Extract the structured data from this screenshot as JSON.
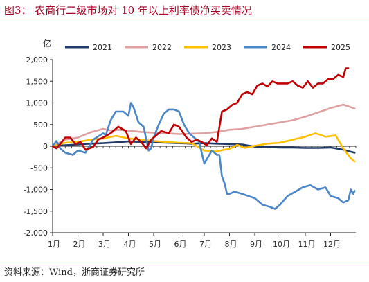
{
  "figure": {
    "title": "图3：  农商行二级市场对 10 年以上利率债净买卖情况",
    "source": "资料来源：Wind，浙商证券研究所"
  },
  "colors": {
    "accent": "#a50021",
    "axis": "#222222"
  },
  "chart_data": {
    "type": "line",
    "ylabel": "亿",
    "ylim": [
      -2000,
      2000
    ],
    "yticks": [
      2000,
      1500,
      1000,
      500,
      0,
      -500,
      -1000,
      -1500,
      -2000
    ],
    "ytick_labels": [
      "2,000",
      "1,500",
      "1,000",
      "500",
      "0",
      "-500",
      "-1,000",
      "-1,500",
      "-2,000"
    ],
    "xlim": [
      1,
      13
    ],
    "xticks": [
      1,
      2,
      3,
      4,
      5,
      6,
      7,
      8,
      9,
      10,
      11,
      12
    ],
    "xtick_labels": [
      "1月",
      "2月",
      "3月",
      "4月",
      "5月",
      "6月",
      "7月",
      "8月",
      "9月",
      "10月",
      "11月",
      "12月"
    ],
    "legend": "top",
    "series": [
      {
        "name": "2021",
        "color": "#1f3a68",
        "points": [
          [
            1.0,
            0
          ],
          [
            1.4,
            20
          ],
          [
            2.0,
            40
          ],
          [
            2.5,
            60
          ],
          [
            3.0,
            70
          ],
          [
            3.5,
            90
          ],
          [
            4.0,
            110
          ],
          [
            4.5,
            100
          ],
          [
            5.0,
            90
          ],
          [
            5.5,
            80
          ],
          [
            6.0,
            70
          ],
          [
            6.5,
            60
          ],
          [
            7.0,
            70
          ],
          [
            7.5,
            60
          ],
          [
            8.0,
            50
          ],
          [
            8.5,
            40
          ],
          [
            9.0,
            -10
          ],
          [
            9.5,
            -20
          ],
          [
            10.0,
            -30
          ],
          [
            10.5,
            -30
          ],
          [
            11.0,
            -40
          ],
          [
            11.5,
            -40
          ],
          [
            12.0,
            -30
          ],
          [
            12.5,
            -80
          ],
          [
            12.95,
            -150
          ]
        ]
      },
      {
        "name": "2022",
        "color": "#e0a0a0",
        "points": [
          [
            1.0,
            0
          ],
          [
            1.5,
            150
          ],
          [
            2.0,
            200
          ],
          [
            2.5,
            320
          ],
          [
            3.0,
            400
          ],
          [
            3.3,
            360
          ],
          [
            3.6,
            380
          ],
          [
            4.0,
            360
          ],
          [
            4.5,
            330
          ],
          [
            5.0,
            310
          ],
          [
            5.5,
            300
          ],
          [
            6.0,
            280
          ],
          [
            6.5,
            290
          ],
          [
            7.0,
            300
          ],
          [
            7.5,
            330
          ],
          [
            8.0,
            380
          ],
          [
            8.5,
            400
          ],
          [
            9.0,
            450
          ],
          [
            9.5,
            500
          ],
          [
            10.0,
            550
          ],
          [
            10.5,
            600
          ],
          [
            11.0,
            680
          ],
          [
            11.5,
            780
          ],
          [
            12.0,
            880
          ],
          [
            12.5,
            960
          ],
          [
            12.95,
            870
          ]
        ]
      },
      {
        "name": "2023",
        "color": "#ffc000",
        "points": [
          [
            1.0,
            0
          ],
          [
            1.5,
            80
          ],
          [
            2.0,
            100
          ],
          [
            2.5,
            150
          ],
          [
            3.0,
            180
          ],
          [
            3.5,
            240
          ],
          [
            4.0,
            180
          ],
          [
            4.5,
            150
          ],
          [
            5.0,
            120
          ],
          [
            5.5,
            100
          ],
          [
            6.0,
            80
          ],
          [
            6.5,
            70
          ],
          [
            7.0,
            -100
          ],
          [
            7.5,
            -120
          ],
          [
            7.8,
            -80
          ],
          [
            8.0,
            -60
          ],
          [
            8.3,
            30
          ],
          [
            8.6,
            -40
          ],
          [
            9.0,
            10
          ],
          [
            9.5,
            60
          ],
          [
            10.0,
            80
          ],
          [
            10.5,
            150
          ],
          [
            11.0,
            220
          ],
          [
            11.4,
            300
          ],
          [
            11.8,
            220
          ],
          [
            12.2,
            250
          ],
          [
            12.5,
            -50
          ],
          [
            12.8,
            -280
          ],
          [
            12.95,
            -350
          ]
        ]
      },
      {
        "name": "2024",
        "color": "#4a86c8",
        "points": [
          [
            1.0,
            0
          ],
          [
            1.15,
            120
          ],
          [
            1.3,
            -50
          ],
          [
            1.5,
            -150
          ],
          [
            1.8,
            -200
          ],
          [
            2.0,
            -100
          ],
          [
            2.3,
            -150
          ],
          [
            2.6,
            150
          ],
          [
            3.0,
            300
          ],
          [
            3.1,
            250
          ],
          [
            3.3,
            600
          ],
          [
            3.5,
            800
          ],
          [
            3.8,
            800
          ],
          [
            4.0,
            700
          ],
          [
            4.1,
            1000
          ],
          [
            4.2,
            900
          ],
          [
            4.4,
            550
          ],
          [
            4.6,
            450
          ],
          [
            4.8,
            -100
          ],
          [
            4.9,
            -50
          ],
          [
            5.0,
            200
          ],
          [
            5.2,
            500
          ],
          [
            5.4,
            750
          ],
          [
            5.6,
            850
          ],
          [
            5.8,
            850
          ],
          [
            6.0,
            800
          ],
          [
            6.2,
            500
          ],
          [
            6.4,
            300
          ],
          [
            6.6,
            200
          ],
          [
            6.8,
            100
          ],
          [
            7.0,
            -400
          ],
          [
            7.1,
            -300
          ],
          [
            7.3,
            -100
          ],
          [
            7.5,
            -200
          ],
          [
            7.6,
            -200
          ],
          [
            7.7,
            -700
          ],
          [
            7.8,
            -850
          ],
          [
            7.9,
            -1100
          ],
          [
            8.0,
            -1100
          ],
          [
            8.2,
            -1050
          ],
          [
            8.5,
            -1100
          ],
          [
            9.0,
            -1200
          ],
          [
            9.3,
            -1350
          ],
          [
            9.6,
            -1400
          ],
          [
            9.8,
            -1450
          ],
          [
            10.0,
            -1350
          ],
          [
            10.3,
            -1150
          ],
          [
            10.6,
            -1050
          ],
          [
            10.9,
            -950
          ],
          [
            11.2,
            -900
          ],
          [
            11.5,
            -1000
          ],
          [
            11.8,
            -950
          ],
          [
            12.0,
            -1150
          ],
          [
            12.3,
            -1200
          ],
          [
            12.5,
            -1300
          ],
          [
            12.7,
            -1250
          ],
          [
            12.8,
            -1000
          ],
          [
            12.9,
            -1100
          ],
          [
            12.95,
            -1030
          ]
        ]
      },
      {
        "name": "2025",
        "color": "#c00000",
        "points": [
          [
            1.0,
            0
          ],
          [
            1.15,
            -50
          ],
          [
            1.3,
            50
          ],
          [
            1.5,
            200
          ],
          [
            1.7,
            200
          ],
          [
            1.9,
            50
          ],
          [
            2.1,
            100
          ],
          [
            2.3,
            -80
          ],
          [
            2.6,
            -20
          ],
          [
            2.8,
            150
          ],
          [
            3.0,
            200
          ],
          [
            3.3,
            300
          ],
          [
            3.6,
            450
          ],
          [
            3.9,
            350
          ],
          [
            4.1,
            50
          ],
          [
            4.3,
            200
          ],
          [
            4.5,
            100
          ],
          [
            4.7,
            -50
          ],
          [
            4.9,
            150
          ],
          [
            5.1,
            250
          ],
          [
            5.3,
            350
          ],
          [
            5.6,
            300
          ],
          [
            5.8,
            500
          ],
          [
            6.0,
            450
          ],
          [
            6.3,
            200
          ],
          [
            6.5,
            100
          ],
          [
            6.7,
            150
          ],
          [
            6.9,
            100
          ],
          [
            7.1,
            20
          ],
          [
            7.3,
            180
          ],
          [
            7.5,
            100
          ],
          [
            7.7,
            800
          ],
          [
            7.9,
            850
          ],
          [
            8.1,
            950
          ],
          [
            8.3,
            1000
          ],
          [
            8.5,
            1200
          ],
          [
            8.7,
            1250
          ],
          [
            8.9,
            1200
          ],
          [
            9.1,
            1400
          ],
          [
            9.3,
            1450
          ],
          [
            9.5,
            1380
          ],
          [
            9.7,
            1500
          ],
          [
            9.9,
            1450
          ],
          [
            10.1,
            1450
          ],
          [
            10.3,
            1450
          ],
          [
            10.5,
            1500
          ],
          [
            10.7,
            1400
          ],
          [
            10.9,
            1350
          ],
          [
            11.1,
            1500
          ],
          [
            11.3,
            1350
          ],
          [
            11.5,
            1450
          ],
          [
            11.7,
            1450
          ],
          [
            11.9,
            1550
          ],
          [
            12.1,
            1550
          ],
          [
            12.3,
            1650
          ],
          [
            12.5,
            1600
          ],
          [
            12.6,
            1800
          ],
          [
            12.7,
            1800
          ]
        ]
      }
    ]
  }
}
